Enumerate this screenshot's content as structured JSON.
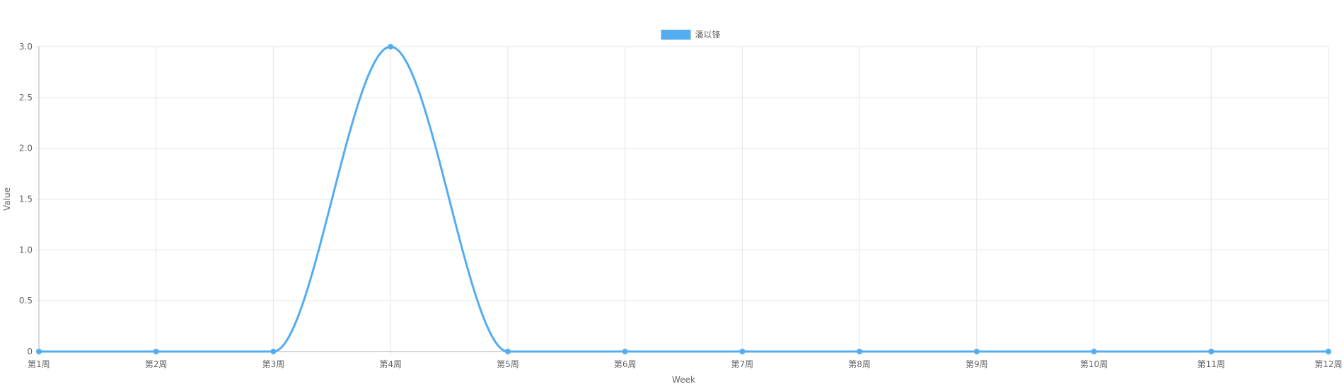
{
  "chart_data": {
    "type": "line",
    "categories": [
      "第1周",
      "第2周",
      "第3周",
      "第4周",
      "第5周",
      "第6周",
      "第7周",
      "第8周",
      "第9周",
      "第10周",
      "第11周",
      "第12周"
    ],
    "series": [
      {
        "name": "潘以锋",
        "values": [
          0,
          0,
          0,
          3,
          0,
          0,
          0,
          0,
          0,
          0,
          0,
          0
        ],
        "color": "#54adf1"
      }
    ],
    "xlabel": "Week",
    "ylabel": "Value",
    "ylim": [
      0,
      3
    ],
    "yticks": [
      0,
      0.5,
      1,
      1.5,
      2,
      2.5,
      3
    ],
    "ytick_labels": [
      "0",
      "0.5",
      "1.0",
      "1.5",
      "2.0",
      "2.5",
      "3.0"
    ],
    "grid": true,
    "legend_position": "top-center",
    "grid_color": "#e5e5e5",
    "axis_color": "#b3b3b3",
    "text_color": "#666666"
  }
}
